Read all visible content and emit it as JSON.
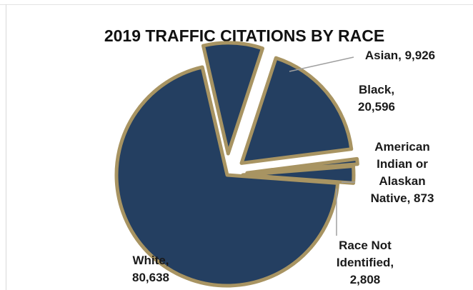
{
  "chart_data": {
    "type": "pie",
    "title": "2019 TRAFFIC CITATIONS BY RACE",
    "slices": [
      {
        "label_lines": [
          "Asian,  9,926"
        ],
        "value": 9926
      },
      {
        "label_lines": [
          "Black,",
          "20,596"
        ],
        "value": 20596
      },
      {
        "label_lines": [
          "American",
          "Indian or",
          "Alaskan",
          "Native, 873"
        ],
        "value": 873
      },
      {
        "label_lines": [
          "Race Not",
          "Identified,",
          "2,808"
        ],
        "value": 2808
      },
      {
        "label_lines": [
          "White,",
          "80,638"
        ],
        "value": 80638
      }
    ],
    "exploded": true,
    "legend": "none",
    "colors": {
      "fill": "#243f61",
      "stroke": "#a89462",
      "leader": "#a0a0a0"
    }
  }
}
